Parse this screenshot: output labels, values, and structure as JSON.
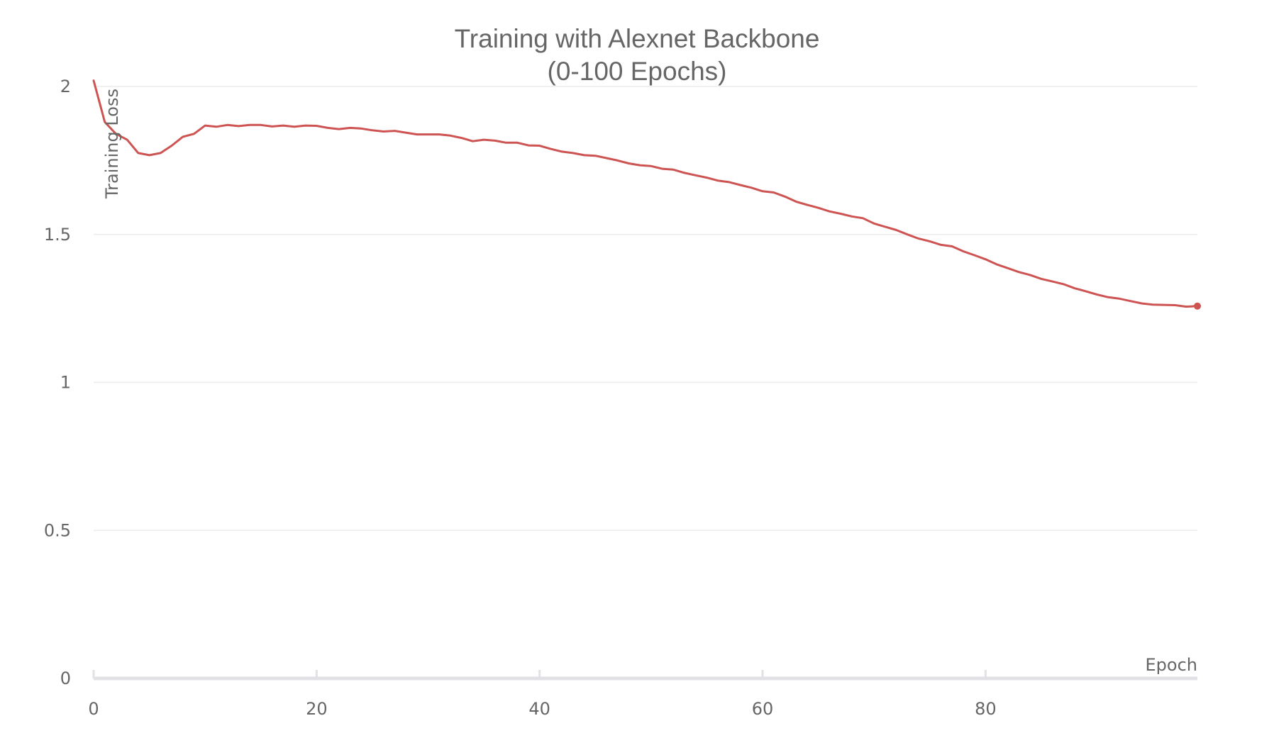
{
  "chart_data": {
    "type": "line",
    "title": "Training with Alexnet Backbone",
    "subtitle": "(0-100 Epochs)",
    "xlabel": "Epoch",
    "ylabel": "Training Loss",
    "xlim": [
      0,
      99
    ],
    "ylim": [
      0,
      2
    ],
    "xticks": [
      0,
      20,
      40,
      60,
      80
    ],
    "xtick_labels": [
      "0",
      "20",
      "40",
      "60",
      "80"
    ],
    "yticks": [
      0,
      0.5,
      1,
      1.5,
      2
    ],
    "ytick_labels": [
      "0",
      "0.5",
      "1",
      "1.5",
      "2"
    ],
    "grid": true,
    "legend": "none",
    "colors": {
      "line": "#cd5452",
      "grid": "#ececec",
      "axis": "#e2e2e6",
      "text": "#666666"
    },
    "series": [
      {
        "x": [
          0,
          1,
          2,
          3,
          4,
          5,
          6,
          7,
          8,
          9,
          10,
          11,
          12,
          13,
          14,
          15,
          16,
          17,
          18,
          19,
          20,
          21,
          22,
          23,
          24,
          25,
          26,
          27,
          28,
          29,
          30,
          31,
          32,
          33,
          34,
          35,
          36,
          37,
          38,
          39,
          40,
          41,
          42,
          43,
          44,
          45,
          46,
          47,
          48,
          49,
          50,
          51,
          52,
          53,
          54,
          55,
          56,
          57,
          58,
          59,
          60,
          61,
          62,
          63,
          64,
          65,
          66,
          67,
          68,
          69,
          70,
          71,
          72,
          73,
          74,
          75,
          76,
          77,
          78,
          79,
          80,
          81,
          82,
          83,
          84,
          85,
          86,
          87,
          88,
          89,
          90,
          91,
          92,
          93,
          94,
          95,
          96,
          97,
          98,
          99
        ],
        "values": [
          2.02,
          1.88,
          1.84,
          1.82,
          1.775,
          1.768,
          1.775,
          1.8,
          1.83,
          1.84,
          1.868,
          1.864,
          1.87,
          1.866,
          1.87,
          1.87,
          1.865,
          1.868,
          1.864,
          1.868,
          1.867,
          1.86,
          1.856,
          1.86,
          1.858,
          1.852,
          1.848,
          1.85,
          1.844,
          1.838,
          1.838,
          1.838,
          1.834,
          1.826,
          1.815,
          1.82,
          1.817,
          1.81,
          1.81,
          1.801,
          1.8,
          1.789,
          1.78,
          1.775,
          1.768,
          1.766,
          1.758,
          1.75,
          1.74,
          1.734,
          1.731,
          1.722,
          1.719,
          1.708,
          1.7,
          1.692,
          1.682,
          1.677,
          1.667,
          1.658,
          1.646,
          1.642,
          1.628,
          1.611,
          1.6,
          1.59,
          1.578,
          1.57,
          1.561,
          1.555,
          1.537,
          1.526,
          1.515,
          1.5,
          1.486,
          1.477,
          1.465,
          1.46,
          1.443,
          1.43,
          1.416,
          1.399,
          1.386,
          1.373,
          1.363,
          1.35,
          1.341,
          1.332,
          1.318,
          1.308,
          1.297,
          1.288,
          1.283,
          1.275,
          1.267,
          1.263,
          1.262,
          1.261,
          1.256,
          1.258
        ]
      }
    ]
  }
}
